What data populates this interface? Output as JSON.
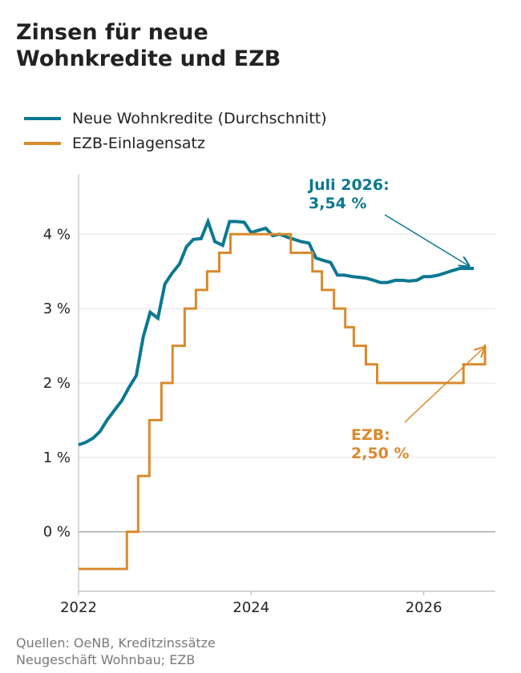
{
  "title_lines": [
    "Zinsen für neue",
    "Wohnkredite und EZB"
  ],
  "legend": [
    {
      "label": "Neue Wohnkredite (Durchschnitt)",
      "color": "#0b7891"
    },
    {
      "label": "EZB-Einlagensatz",
      "color": "#d98a2e"
    }
  ],
  "source_lines": [
    "Quellen: OeNB, Kreditzinssätze",
    "Neugeschäft Wohnbau; EZB"
  ],
  "annotations": {
    "loans_line1": "Juli 2026:",
    "loans_line2": "3,54 %",
    "ecb_line1": "EZB:",
    "ecb_line2": "2,50 %"
  },
  "chart_data": {
    "type": "line",
    "title": "Zinsen für neue Wohnkredite und EZB",
    "xlim": [
      2022.0,
      2026.83
    ],
    "ylim": [
      -0.8,
      4.8
    ],
    "x_ticks": [
      2022,
      2024,
      2026
    ],
    "x_tick_labels": [
      "2022",
      "2024",
      "2026"
    ],
    "y_ticks": [
      0,
      1,
      2,
      3,
      4
    ],
    "y_tick_labels": [
      "0 %",
      "1 %",
      "2 %",
      "3 %",
      "4 %"
    ],
    "grid": "horizontal",
    "legend_position": "top-left",
    "series": [
      {
        "name": "Neue Wohnkredite (Durchschnitt)",
        "color": "#0b7891",
        "step": false,
        "x": [
          2022.0,
          2022.08,
          2022.17,
          2022.25,
          2022.33,
          2022.42,
          2022.5,
          2022.58,
          2022.67,
          2022.75,
          2022.83,
          2022.92,
          2023.0,
          2023.08,
          2023.17,
          2023.25,
          2023.33,
          2023.42,
          2023.5,
          2023.58,
          2023.67,
          2023.75,
          2023.83,
          2023.92,
          2024.0,
          2024.08,
          2024.17,
          2024.25,
          2024.33,
          2024.42,
          2024.5,
          2024.58,
          2024.67,
          2024.75,
          2024.83,
          2024.92,
          2025.0,
          2025.08,
          2025.17,
          2025.25,
          2025.33,
          2025.42,
          2025.5,
          2025.58,
          2025.67,
          2025.75,
          2025.83,
          2025.92,
          2026.0,
          2026.08,
          2026.17,
          2026.25,
          2026.33,
          2026.42,
          2026.5,
          2026.58
        ],
        "y": [
          1.17,
          1.2,
          1.26,
          1.35,
          1.5,
          1.64,
          1.76,
          1.93,
          2.1,
          2.62,
          2.95,
          2.87,
          3.33,
          3.47,
          3.6,
          3.83,
          3.93,
          3.94,
          4.17,
          3.9,
          3.85,
          4.17,
          4.17,
          4.16,
          4.02,
          4.05,
          4.08,
          3.98,
          4.0,
          3.96,
          3.93,
          3.9,
          3.88,
          3.68,
          3.65,
          3.62,
          3.45,
          3.45,
          3.43,
          3.42,
          3.41,
          3.38,
          3.35,
          3.35,
          3.38,
          3.38,
          3.37,
          3.38,
          3.43,
          3.43,
          3.45,
          3.48,
          3.51,
          3.54,
          3.54,
          3.54
        ]
      },
      {
        "name": "EZB-Einlagensatz",
        "color": "#d98a2e",
        "step": true,
        "x": [
          2022.0,
          2022.56,
          2022.69,
          2022.82,
          2022.96,
          2023.09,
          2023.23,
          2023.36,
          2023.49,
          2023.63,
          2023.76,
          2024.46,
          2024.71,
          2024.82,
          2024.96,
          2025.09,
          2025.19,
          2025.33,
          2025.46,
          2026.46,
          2026.71,
          2026.72
        ],
        "y": [
          -0.5,
          0.0,
          0.75,
          1.5,
          2.0,
          2.5,
          3.0,
          3.25,
          3.5,
          3.75,
          4.0,
          3.75,
          3.5,
          3.25,
          3.0,
          2.75,
          2.5,
          2.25,
          2.0,
          2.25,
          2.5,
          2.5
        ]
      }
    ]
  }
}
